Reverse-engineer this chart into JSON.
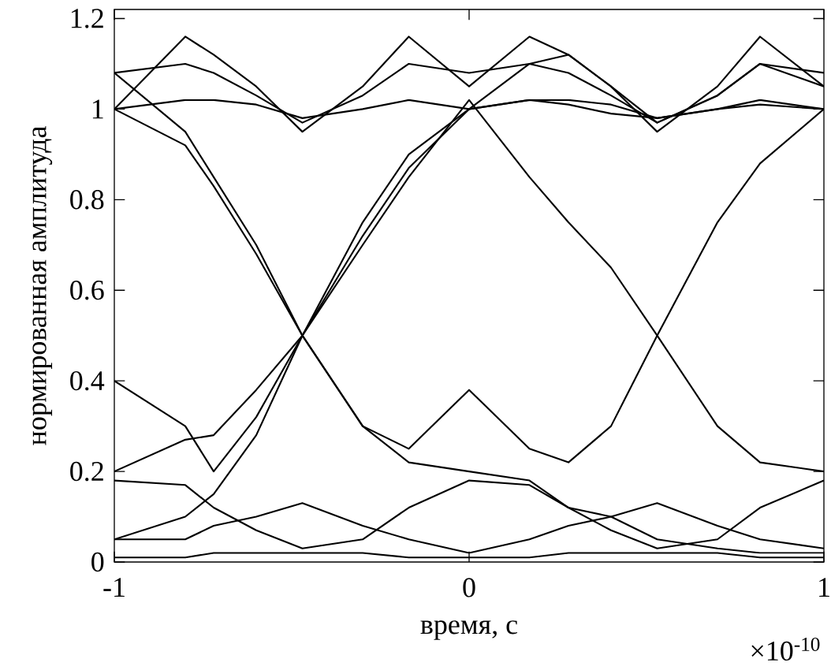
{
  "chart_data": {
    "type": "line",
    "xlabel": "время, с",
    "ylabel": "нормированная амплитуда",
    "annotations": [
      "×10$^{-10}$"
    ],
    "x": [
      -1,
      -0.8,
      -0.72,
      -0.6,
      -0.47,
      -0.3,
      -0.17,
      0,
      0.17,
      0.28,
      0.4,
      0.53,
      0.7,
      0.82,
      1
    ],
    "xlim": [
      -1,
      1
    ],
    "xticks": [
      -1,
      0,
      1
    ],
    "ylim": [
      0,
      1.22
    ],
    "yticks": [
      0,
      0.2,
      0.4,
      0.6,
      0.8,
      1,
      1.2
    ],
    "series": [
      {
        "color": "#000000",
        "values": [
          1.0,
          1.16,
          1.12,
          1.05,
          0.95,
          1.05,
          1.16,
          1.05,
          1.16,
          1.12,
          1.05,
          0.95,
          1.05,
          1.16,
          1.05
        ]
      },
      {
        "color": "#000000",
        "values": [
          1.0,
          1.02,
          1.02,
          1.01,
          0.98,
          1.0,
          1.02,
          1.0,
          1.02,
          1.02,
          1.01,
          0.98,
          1.0,
          1.02,
          1.0
        ]
      },
      {
        "color": "#000000",
        "values": [
          1.08,
          1.1,
          1.08,
          1.03,
          0.97,
          1.03,
          1.1,
          1.08,
          1.1,
          1.08,
          1.03,
          0.97,
          1.03,
          1.1,
          1.08
        ]
      },
      {
        "color": "#000000",
        "values": [
          1.08,
          0.95,
          0.85,
          0.7,
          0.5,
          0.3,
          0.25,
          0.38,
          0.25,
          0.22,
          0.3,
          0.5,
          0.75,
          0.88,
          1.0
        ]
      },
      {
        "color": "#000000",
        "values": [
          1.0,
          0.92,
          0.83,
          0.68,
          0.5,
          0.3,
          0.22,
          0.2,
          0.18,
          0.12,
          0.1,
          0.05,
          0.03,
          0.02,
          0.02
        ]
      },
      {
        "color": "#000000",
        "values": [
          0.2,
          0.27,
          0.28,
          0.38,
          0.5,
          0.7,
          0.85,
          1.02,
          0.85,
          0.75,
          0.65,
          0.5,
          0.3,
          0.22,
          0.2
        ]
      },
      {
        "color": "#000000",
        "values": [
          0.4,
          0.3,
          0.2,
          0.32,
          0.5,
          0.72,
          0.87,
          1.0,
          1.1,
          1.12,
          1.05,
          0.97,
          1.03,
          1.1,
          1.05
        ]
      },
      {
        "color": "#000000",
        "values": [
          0.05,
          0.1,
          0.15,
          0.28,
          0.5,
          0.75,
          0.9,
          1.0,
          1.02,
          1.01,
          0.99,
          0.98,
          1.0,
          1.01,
          1.0
        ]
      },
      {
        "color": "#000000",
        "values": [
          0.05,
          0.05,
          0.08,
          0.1,
          0.13,
          0.08,
          0.05,
          0.02,
          0.05,
          0.08,
          0.1,
          0.13,
          0.08,
          0.05,
          0.03
        ]
      },
      {
        "color": "#000000",
        "values": [
          0.18,
          0.17,
          0.12,
          0.07,
          0.03,
          0.05,
          0.12,
          0.18,
          0.17,
          0.12,
          0.07,
          0.03,
          0.05,
          0.12,
          0.18
        ]
      },
      {
        "color": "#000000",
        "values": [
          0.01,
          0.01,
          0.02,
          0.02,
          0.02,
          0.02,
          0.01,
          0.01,
          0.01,
          0.02,
          0.02,
          0.02,
          0.02,
          0.01,
          0.01
        ]
      }
    ]
  }
}
